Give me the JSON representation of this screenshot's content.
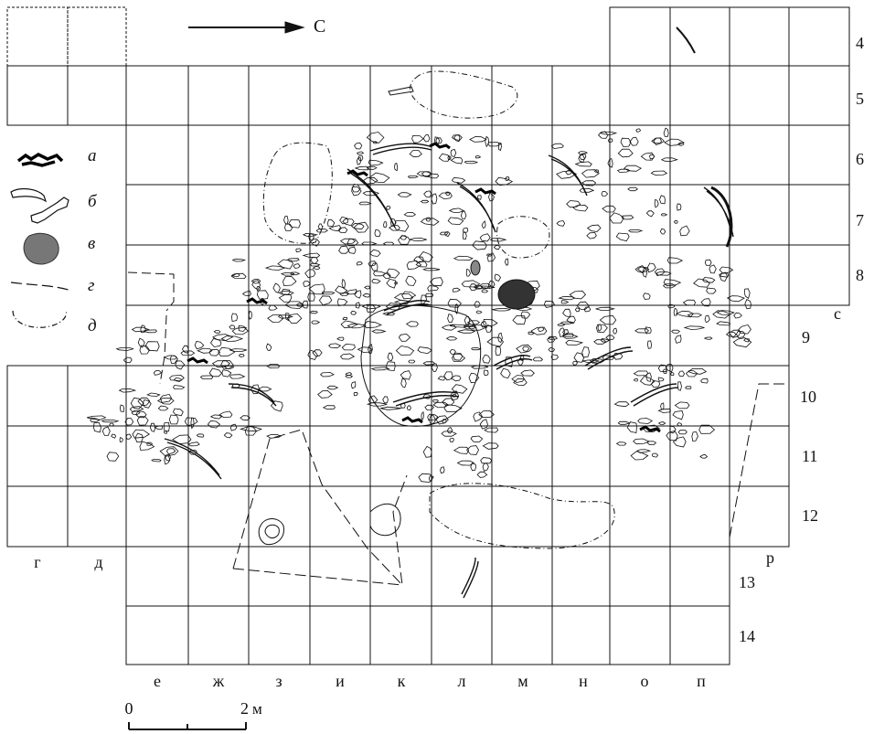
{
  "north_arrow": {
    "label": "С"
  },
  "grid": {
    "row_labels": [
      "4",
      "5",
      "6",
      "7",
      "8",
      "9",
      "10",
      "11",
      "12",
      "13",
      "14"
    ],
    "column_labels_bottom": [
      "е",
      "ж",
      "з",
      "и",
      "к",
      "л",
      "м",
      "н",
      "о",
      "п"
    ],
    "column_labels_left": [
      "г",
      "д"
    ],
    "column_label_right_top": "с",
    "column_label_right_bottom": "р"
  },
  "legend": {
    "items": [
      {
        "letter": "а",
        "icon": "charred-bone-icon"
      },
      {
        "letter": "б",
        "icon": "bone-outline-icon"
      },
      {
        "letter": "в",
        "icon": "ochre-stain-icon"
      },
      {
        "letter": "г",
        "icon": "dashed-boundary-icon"
      },
      {
        "letter": "д",
        "icon": "dash-dot-boundary-icon"
      }
    ]
  },
  "scale": {
    "start": "0",
    "end": "2",
    "unit": "м"
  },
  "colors": {
    "line": "#111111",
    "ochre_fill": "#777777"
  }
}
